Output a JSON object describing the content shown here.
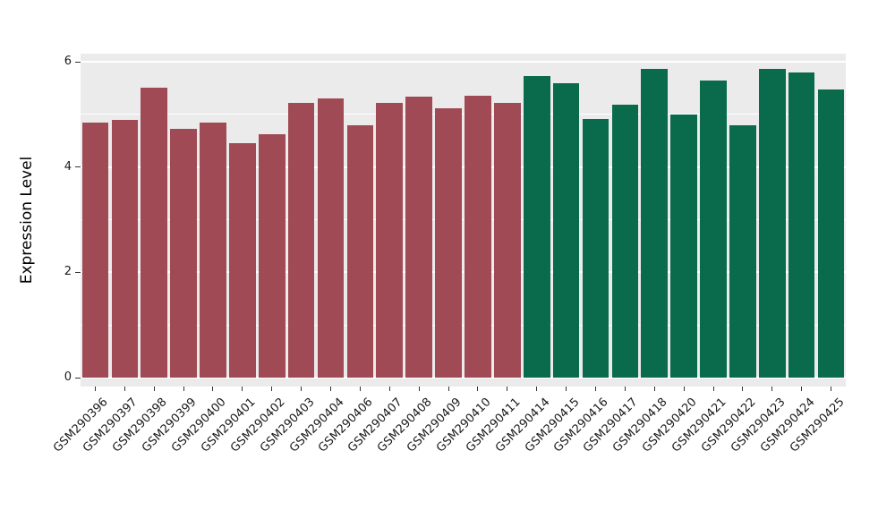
{
  "chart_data": {
    "type": "bar",
    "title": "",
    "xlabel": "",
    "ylabel": "Expression Level",
    "ylim": [
      0,
      6
    ],
    "yticks": [
      0,
      2,
      4,
      6
    ],
    "yticks_minor": [
      1,
      3,
      5
    ],
    "grid": "horizontal-white-on-gray",
    "legend": "none",
    "panel_background": "#EBEBEB",
    "categories": [
      "GSM290396",
      "GSM290397",
      "GSM290398",
      "GSM290399",
      "GSM290400",
      "GSM290401",
      "GSM290402",
      "GSM290403",
      "GSM290404",
      "GSM290406",
      "GSM290407",
      "GSM290408",
      "GSM290409",
      "GSM290410",
      "GSM290411",
      "GSM290414",
      "GSM290415",
      "GSM290416",
      "GSM290417",
      "GSM290418",
      "GSM290420",
      "GSM290421",
      "GSM290422",
      "GSM290423",
      "GSM290424",
      "GSM290425"
    ],
    "values": [
      4.85,
      4.9,
      5.5,
      4.72,
      4.85,
      4.45,
      4.63,
      5.22,
      5.3,
      4.8,
      5.22,
      5.33,
      5.12,
      5.35,
      5.22,
      5.73,
      5.6,
      4.92,
      5.18,
      5.87,
      5.0,
      5.65,
      4.8,
      5.87,
      5.8,
      5.47
    ],
    "groups": [
      "group1",
      "group1",
      "group1",
      "group1",
      "group1",
      "group1",
      "group1",
      "group1",
      "group1",
      "group1",
      "group1",
      "group1",
      "group1",
      "group1",
      "group1",
      "group2",
      "group2",
      "group2",
      "group2",
      "group2",
      "group2",
      "group2",
      "group2",
      "group2",
      "group2",
      "group2"
    ],
    "colors": {
      "group1": "#A04A55",
      "group2": "#0A6B4C"
    }
  }
}
